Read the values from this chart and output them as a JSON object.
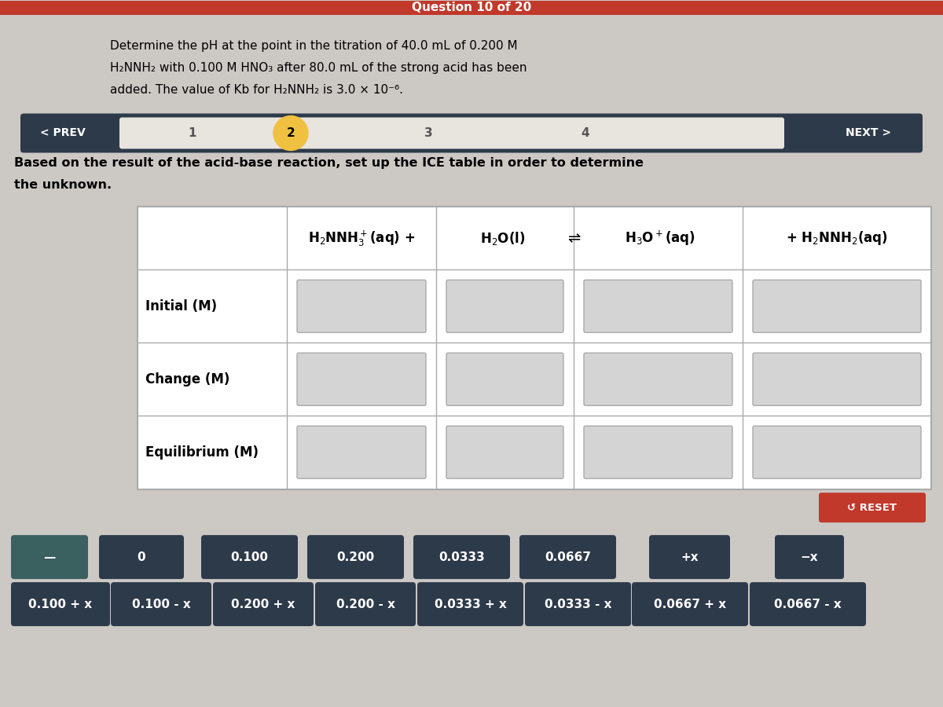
{
  "bg_color": "#ccc8c4",
  "top_bar_color": "#c0392b",
  "top_bar_text": "Question 10 of 20",
  "q_line1": "Determine the pH at the point in the titration of 40.0 mL of 0.200 M",
  "q_line2": "H₂NNH₂ with 0.100 M HNO₃ after 80.0 mL of the strong acid has been",
  "q_line3": "added. The value of Kb for H₂NNH₂ is 3.0 × 10⁻⁶.",
  "nav_dark": "#2d3a4a",
  "nav_light": "#e8e4de",
  "nav_highlight": "#f0c040",
  "inst_line1": "Based on the result of the acid-base reaction, set up the ICE table in order to determine",
  "inst_line2": "the unknown.",
  "reset_color": "#c0392b",
  "reset_text": "↺ RESET",
  "drag_dark": "#2d3a4a",
  "drag_items_row1": [
    "—",
    "0",
    "0.100",
    "0.200",
    "0.0333",
    "0.0667",
    "+x",
    "−x"
  ],
  "drag_items_row2": [
    "0.100 + x",
    "0.100 - x",
    "0.200 + x",
    "0.200 - x",
    "0.0333 + x",
    "0.0333 - x",
    "0.0667 + x",
    "0.0667 - x"
  ]
}
